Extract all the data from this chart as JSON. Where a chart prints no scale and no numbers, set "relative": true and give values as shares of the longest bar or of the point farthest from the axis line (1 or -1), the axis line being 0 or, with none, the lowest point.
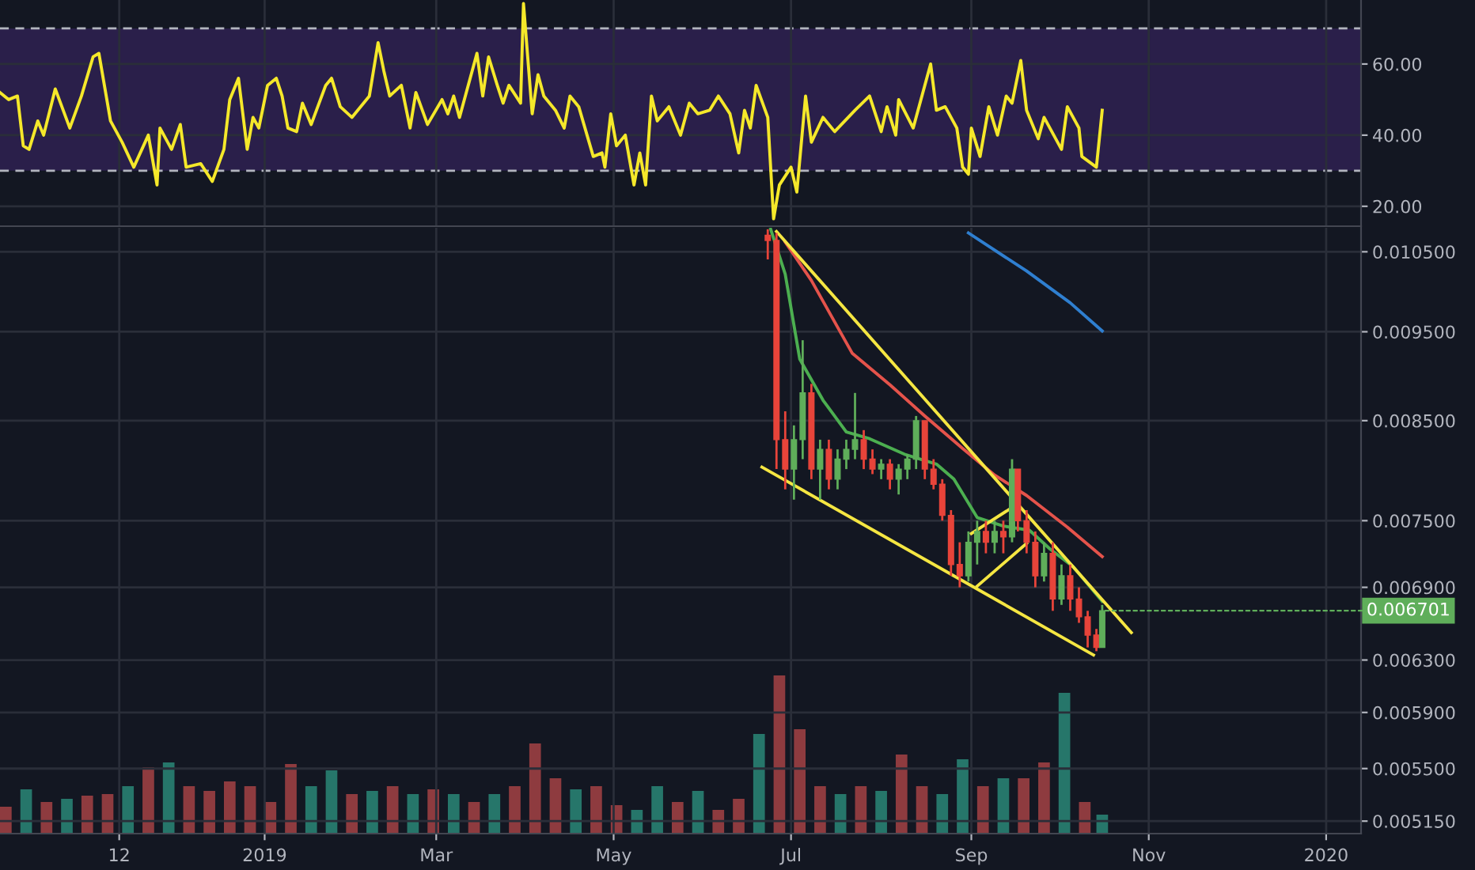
{
  "chart_data": [
    {
      "type": "line",
      "xlim": [
        "2018-10-02",
        "2020-01-13"
      ],
      "ylim": [
        14.4,
        78
      ],
      "yticks": [
        {
          "value": 20,
          "label": "20.00"
        },
        {
          "value": 40,
          "label": "40.00"
        },
        {
          "value": 60,
          "label": "60.00"
        }
      ],
      "xticks": [
        {
          "value": "2018-11-12",
          "label": null
        },
        {
          "value": "2019-01-01",
          "label": null
        },
        {
          "value": "2019-03-01",
          "label": null
        },
        {
          "value": "2019-05-01",
          "label": null
        },
        {
          "value": "2019-07-01",
          "label": null
        },
        {
          "value": "2019-09-01",
          "label": null
        },
        {
          "value": "2019-11-01",
          "label": null
        },
        {
          "value": "2020-01-01",
          "label": null
        }
      ],
      "tick_labels": "y",
      "grid": true,
      "bands": [
        {
          "axis": "y",
          "from": 30,
          "to": 70,
          "color": "#2a1f4a"
        }
      ],
      "ref_lines": [
        {
          "axis": "y",
          "value": 70,
          "color": "#b2b5be",
          "line_style": "dashed"
        },
        {
          "axis": "y",
          "value": 30,
          "color": "#b2b5be",
          "line_style": "dashed"
        }
      ],
      "series": [
        {
          "color": "#f5e82a",
          "x": [
            "2018-10-02",
            "2018-10-05",
            "2018-10-08",
            "2018-10-10",
            "2018-10-12",
            "2018-10-15",
            "2018-10-17",
            "2018-10-21",
            "2018-10-26",
            "2018-10-30",
            "2018-11-03",
            "2018-11-05",
            "2018-11-09",
            "2018-11-13",
            "2018-11-17",
            "2018-11-22",
            "2018-11-25",
            "2018-11-26",
            "2018-11-30",
            "2018-12-03",
            "2018-12-05",
            "2018-12-10",
            "2018-12-14",
            "2018-12-18",
            "2018-12-20",
            "2018-12-23",
            "2018-12-26",
            "2018-12-28",
            "2018-12-30",
            "2019-01-02",
            "2019-01-05",
            "2019-01-07",
            "2019-01-09",
            "2019-01-12",
            "2019-01-14",
            "2019-01-17",
            "2019-01-22",
            "2019-01-24",
            "2019-01-27",
            "2019-01-31",
            "2019-02-06",
            "2019-02-09",
            "2019-02-11",
            "2019-02-13",
            "2019-02-17",
            "2019-02-20",
            "2019-02-22",
            "2019-02-26",
            "2019-03-03",
            "2019-03-05",
            "2019-03-07",
            "2019-03-09",
            "2019-03-15",
            "2019-03-17",
            "2019-03-19",
            "2019-03-22",
            "2019-03-24",
            "2019-03-26",
            "2019-03-30",
            "2019-03-31",
            "2019-04-03",
            "2019-04-05",
            "2019-04-07",
            "2019-04-11",
            "2019-04-14",
            "2019-04-16",
            "2019-04-19",
            "2019-04-24",
            "2019-04-27",
            "2019-04-28",
            "2019-04-30",
            "2019-05-02",
            "2019-05-05",
            "2019-05-08",
            "2019-05-10",
            "2019-05-12",
            "2019-05-14",
            "2019-05-16",
            "2019-05-20",
            "2019-05-24",
            "2019-05-27",
            "2019-05-30",
            "2019-06-03",
            "2019-06-06",
            "2019-06-10",
            "2019-06-13",
            "2019-06-15",
            "2019-06-17",
            "2019-06-19",
            "2019-06-23",
            "2019-06-25",
            "2019-06-27",
            "2019-07-01",
            "2019-07-03",
            "2019-07-06",
            "2019-07-08",
            "2019-07-12",
            "2019-07-16",
            "2019-07-23",
            "2019-07-28",
            "2019-08-01",
            "2019-08-03",
            "2019-08-06",
            "2019-08-07",
            "2019-08-12",
            "2019-08-18",
            "2019-08-20",
            "2019-08-23",
            "2019-08-27",
            "2019-08-29",
            "2019-08-31",
            "2019-09-01",
            "2019-09-04",
            "2019-09-07",
            "2019-09-10",
            "2019-09-13",
            "2019-09-15",
            "2019-09-18",
            "2019-09-20",
            "2019-09-24",
            "2019-09-26",
            "2019-10-02",
            "2019-10-04",
            "2019-10-08",
            "2019-10-09",
            "2019-10-14",
            "2019-10-16"
          ],
          "values": [
            52,
            50,
            51,
            37,
            36,
            44,
            40,
            53,
            42,
            51,
            62,
            63,
            44,
            38,
            31,
            40,
            26,
            42,
            36,
            43,
            31,
            32,
            27,
            36,
            50,
            56,
            36,
            45,
            42,
            54,
            56,
            51,
            42,
            41,
            49,
            43,
            54,
            56,
            48,
            45,
            51,
            66,
            58,
            51,
            54,
            42,
            52,
            43,
            50,
            46,
            51,
            45,
            63,
            51,
            62,
            54,
            49,
            54,
            49,
            77,
            46,
            57,
            51,
            47,
            42,
            51,
            48,
            34,
            35,
            31,
            46,
            37,
            40,
            26,
            35,
            26,
            51,
            44,
            48,
            40,
            49,
            46,
            47,
            51,
            46,
            35,
            47,
            42,
            54,
            45,
            16.5,
            26,
            31,
            24,
            51,
            38,
            45,
            41,
            47,
            51,
            41,
            48,
            40,
            50,
            42,
            60,
            47,
            48,
            42,
            31,
            29,
            42,
            34,
            48,
            40,
            51,
            49,
            61,
            47,
            39,
            45,
            36,
            48,
            42,
            34,
            31,
            47
          ]
        }
      ]
    },
    {
      "type": "candlestick",
      "log": "y",
      "xlim": [
        "2018-10-02",
        "2020-01-13"
      ],
      "ylim": [
        0.00507,
        0.01082
      ],
      "yticks": [
        {
          "value": 0.00515,
          "label": "0.005150"
        },
        {
          "value": 0.0055,
          "label": "0.005500"
        },
        {
          "value": 0.0059,
          "label": "0.005900"
        },
        {
          "value": 0.0063,
          "label": "0.006300"
        },
        {
          "value": 0.0069,
          "label": "0.006900"
        },
        {
          "value": 0.0075,
          "label": "0.007500"
        },
        {
          "value": 0.0085,
          "label": "0.008500"
        },
        {
          "value": 0.0095,
          "label": "0.009500"
        },
        {
          "value": 0.0105,
          "label": "0.010500"
        }
      ],
      "xticks": [
        {
          "value": "2018-11-12",
          "label": "12"
        },
        {
          "value": "2019-01-01",
          "label": "2019"
        },
        {
          "value": "2019-03-01",
          "label": "Mar"
        },
        {
          "value": "2019-05-01",
          "label": "May"
        },
        {
          "value": "2019-07-01",
          "label": "Jul"
        },
        {
          "value": "2019-09-01",
          "label": "Sep"
        },
        {
          "value": "2019-11-01",
          "label": "Nov"
        },
        {
          "value": "2020-01-01",
          "label": "2020"
        }
      ],
      "grid": true,
      "x": [
        "2019-06-23",
        "2019-06-26",
        "2019-06-29",
        "2019-07-02",
        "2019-07-05",
        "2019-07-08",
        "2019-07-11",
        "2019-07-14",
        "2019-07-17",
        "2019-07-20",
        "2019-07-23",
        "2019-07-26",
        "2019-07-29",
        "2019-08-01",
        "2019-08-04",
        "2019-08-07",
        "2019-08-10",
        "2019-08-13",
        "2019-08-16",
        "2019-08-19",
        "2019-08-22",
        "2019-08-25",
        "2019-08-28",
        "2019-08-31",
        "2019-09-03",
        "2019-09-06",
        "2019-09-09",
        "2019-09-12",
        "2019-09-15",
        "2019-09-17",
        "2019-09-20",
        "2019-09-23",
        "2019-09-26",
        "2019-09-29",
        "2019-10-02",
        "2019-10-05",
        "2019-10-08",
        "2019-10-11",
        "2019-10-14",
        "2019-10-16"
      ],
      "ohlc": [
        [
          0.01072,
          0.0108,
          0.0104,
          0.01065
        ],
        [
          0.01065,
          0.01075,
          0.008,
          0.0083
        ],
        [
          0.0083,
          0.0086,
          0.0078,
          0.008
        ],
        [
          0.008,
          0.00845,
          0.0077,
          0.0083
        ],
        [
          0.0083,
          0.0094,
          0.0081,
          0.0088
        ],
        [
          0.0088,
          0.0089,
          0.0079,
          0.008
        ],
        [
          0.008,
          0.0083,
          0.0077,
          0.0082
        ],
        [
          0.0082,
          0.0083,
          0.0078,
          0.0079
        ],
        [
          0.0079,
          0.0082,
          0.0078,
          0.0081
        ],
        [
          0.0081,
          0.0083,
          0.008,
          0.0082
        ],
        [
          0.0082,
          0.0088,
          0.0081,
          0.0083
        ],
        [
          0.0083,
          0.0084,
          0.008,
          0.0081
        ],
        [
          0.0081,
          0.0082,
          0.00795,
          0.008
        ],
        [
          0.008,
          0.0081,
          0.0079,
          0.00805
        ],
        [
          0.00805,
          0.0081,
          0.0078,
          0.0079
        ],
        [
          0.0079,
          0.00805,
          0.00775,
          0.008
        ],
        [
          0.008,
          0.00815,
          0.0079,
          0.0081
        ],
        [
          0.0081,
          0.00855,
          0.008,
          0.0085
        ],
        [
          0.0085,
          0.0085,
          0.0079,
          0.008
        ],
        [
          0.008,
          0.0081,
          0.0078,
          0.00785
        ],
        [
          0.00785,
          0.0079,
          0.0075,
          0.00755
        ],
        [
          0.00755,
          0.0076,
          0.007,
          0.0071
        ],
        [
          0.0071,
          0.0073,
          0.0069,
          0.007
        ],
        [
          0.007,
          0.0074,
          0.00695,
          0.0073
        ],
        [
          0.0073,
          0.0075,
          0.0071,
          0.0074
        ],
        [
          0.0074,
          0.0075,
          0.0072,
          0.0073
        ],
        [
          0.0073,
          0.0075,
          0.0072,
          0.0074
        ],
        [
          0.0074,
          0.0075,
          0.0072,
          0.00735
        ],
        [
          0.00735,
          0.0081,
          0.0073,
          0.008
        ],
        [
          0.008,
          0.008,
          0.0074,
          0.0075
        ],
        [
          0.0075,
          0.0076,
          0.0072,
          0.0073
        ],
        [
          0.0073,
          0.0074,
          0.0069,
          0.007
        ],
        [
          0.007,
          0.0073,
          0.00695,
          0.0072
        ],
        [
          0.0072,
          0.0073,
          0.0067,
          0.0068
        ],
        [
          0.0068,
          0.0071,
          0.00675,
          0.007
        ],
        [
          0.007,
          0.0071,
          0.0067,
          0.0068
        ],
        [
          0.0068,
          0.0069,
          0.0066,
          0.00665
        ],
        [
          0.00665,
          0.0067,
          0.0064,
          0.0065
        ],
        [
          0.0065,
          0.00655,
          0.00637,
          0.0064
        ],
        [
          0.0064,
          0.00675,
          0.0064,
          0.006701
        ]
      ],
      "colors": [
        "#e8443a",
        "#e8443a",
        "#e8443a",
        "#5fae5a",
        "#5fae5a",
        "#e8443a",
        "#5fae5a",
        "#e8443a",
        "#5fae5a",
        "#5fae5a",
        "#5fae5a",
        "#e8443a",
        "#e8443a",
        "#5fae5a",
        "#e8443a",
        "#5fae5a",
        "#5fae5a",
        "#5fae5a",
        "#e8443a",
        "#e8443a",
        "#e8443a",
        "#e8443a",
        "#e8443a",
        "#5fae5a",
        "#5fae5a",
        "#e8443a",
        "#5fae5a",
        "#e8443a",
        "#5fae5a",
        "#e8443a",
        "#e8443a",
        "#e8443a",
        "#5fae5a",
        "#e8443a",
        "#5fae5a",
        "#e8443a",
        "#e8443a",
        "#e8443a",
        "#e8443a",
        "#5fae5a"
      ],
      "annotations": [
        {
          "text": "0.006701",
          "x": "2019-10-16",
          "y": 0.006701
        }
      ],
      "series": [
        {
          "type": "line",
          "color": "#4caf50",
          "x": [
            "2019-06-24",
            "2019-06-29",
            "2019-07-04",
            "2019-07-12",
            "2019-07-20",
            "2019-07-28",
            "2019-08-09",
            "2019-08-20",
            "2019-08-26",
            "2019-09-03",
            "2019-09-12",
            "2019-09-21",
            "2019-09-28",
            "2019-10-06",
            "2019-10-16"
          ],
          "values": [
            0.0108,
            0.01021,
            0.00918,
            0.00872,
            0.00838,
            0.00831,
            0.00815,
            0.00805,
            0.0079,
            0.00753,
            0.00745,
            0.00741,
            0.00724,
            0.00708,
            0.00678
          ]
        },
        {
          "type": "line",
          "color": "#e5534b",
          "x": [
            "2019-06-29",
            "2019-07-08",
            "2019-07-22",
            "2019-08-04",
            "2019-08-16",
            "2019-08-29",
            "2019-09-09",
            "2019-09-20",
            "2019-10-04",
            "2019-10-16"
          ],
          "values": [
            0.01063,
            0.01013,
            0.00925,
            0.00889,
            0.00855,
            0.00821,
            0.00794,
            0.00774,
            0.00744,
            0.00717
          ]
        },
        {
          "type": "line",
          "color": "#2f7fd0",
          "x": [
            "2019-08-31",
            "2019-09-20",
            "2019-10-05",
            "2019-10-16"
          ],
          "values": [
            0.01075,
            0.01025,
            0.00985,
            0.00951
          ]
        },
        {
          "type": "line",
          "color": "#f5e642",
          "x": [
            "2019-06-26",
            "2019-10-26"
          ],
          "values": [
            0.01077,
            0.00652
          ]
        },
        {
          "type": "line",
          "color": "#f5e642",
          "x": [
            "2019-06-21",
            "2019-10-13"
          ],
          "values": [
            0.00802,
            0.00634
          ]
        },
        {
          "type": "line",
          "color": "#f5e642",
          "x": [
            "2019-09-01",
            "2019-09-17"
          ],
          "values": [
            0.00738,
            0.00766
          ]
        },
        {
          "type": "line",
          "color": "#f5e642",
          "x": [
            "2019-09-03",
            "2019-09-20"
          ],
          "values": [
            0.00691,
            0.00729
          ]
        }
      ]
    },
    {
      "type": "bar",
      "relative": true,
      "tick_labels": false,
      "xlim": [
        "2018-10-02",
        "2020-01-13"
      ],
      "x": [
        "2018-10-04",
        "2018-10-11",
        "2018-10-18",
        "2018-10-25",
        "2018-11-01",
        "2018-11-08",
        "2018-11-15",
        "2018-11-22",
        "2018-11-29",
        "2018-12-06",
        "2018-12-13",
        "2018-12-20",
        "2018-12-27",
        "2019-01-03",
        "2019-01-10",
        "2019-01-17",
        "2019-01-24",
        "2019-01-31",
        "2019-02-07",
        "2019-02-14",
        "2019-02-21",
        "2019-02-28",
        "2019-03-07",
        "2019-03-14",
        "2019-03-21",
        "2019-03-28",
        "2019-04-04",
        "2019-04-11",
        "2019-04-18",
        "2019-04-25",
        "2019-05-02",
        "2019-05-09",
        "2019-05-16",
        "2019-05-23",
        "2019-05-30",
        "2019-06-06",
        "2019-06-13",
        "2019-06-20",
        "2019-06-27",
        "2019-07-04",
        "2019-07-11",
        "2019-07-18",
        "2019-07-25",
        "2019-08-01",
        "2019-08-08",
        "2019-08-15",
        "2019-08-22",
        "2019-08-29",
        "2019-09-05",
        "2019-09-12",
        "2019-09-19",
        "2019-09-26",
        "2019-10-03",
        "2019-10-10",
        "2019-10-16"
      ],
      "values": [
        0.17,
        0.28,
        0.2,
        0.22,
        0.24,
        0.25,
        0.3,
        0.42,
        0.45,
        0.3,
        0.27,
        0.33,
        0.3,
        0.2,
        0.44,
        0.3,
        0.4,
        0.25,
        0.27,
        0.3,
        0.25,
        0.28,
        0.25,
        0.2,
        0.25,
        0.3,
        0.57,
        0.35,
        0.28,
        0.3,
        0.18,
        0.15,
        0.3,
        0.2,
        0.27,
        0.15,
        0.22,
        0.63,
        1,
        0.66,
        0.3,
        0.25,
        0.3,
        0.27,
        0.5,
        0.3,
        0.25,
        0.47,
        0.3,
        0.35,
        0.35,
        0.45,
        0.89,
        0.2,
        0.12
      ],
      "colors": [
        "#8e3b3f",
        "#26766a",
        "#8e3b3f",
        "#26766a",
        "#8e3b3f",
        "#8e3b3f",
        "#26766a",
        "#8e3b3f",
        "#26766a",
        "#8e3b3f",
        "#8e3b3f",
        "#8e3b3f",
        "#8e3b3f",
        "#8e3b3f",
        "#8e3b3f",
        "#26766a",
        "#26766a",
        "#8e3b3f",
        "#26766a",
        "#8e3b3f",
        "#26766a",
        "#8e3b3f",
        "#26766a",
        "#8e3b3f",
        "#26766a",
        "#8e3b3f",
        "#8e3b3f",
        "#8e3b3f",
        "#26766a",
        "#8e3b3f",
        "#8e3b3f",
        "#26766a",
        "#26766a",
        "#8e3b3f",
        "#26766a",
        "#8e3b3f",
        "#8e3b3f",
        "#26766a",
        "#8e3b3f",
        "#8e3b3f",
        "#8e3b3f",
        "#26766a",
        "#8e3b3f",
        "#26766a",
        "#8e3b3f",
        "#8e3b3f",
        "#26766a",
        "#26766a",
        "#8e3b3f",
        "#26766a",
        "#8e3b3f",
        "#8e3b3f",
        "#26766a",
        "#8e3b3f",
        "#26766a"
      ]
    }
  ]
}
